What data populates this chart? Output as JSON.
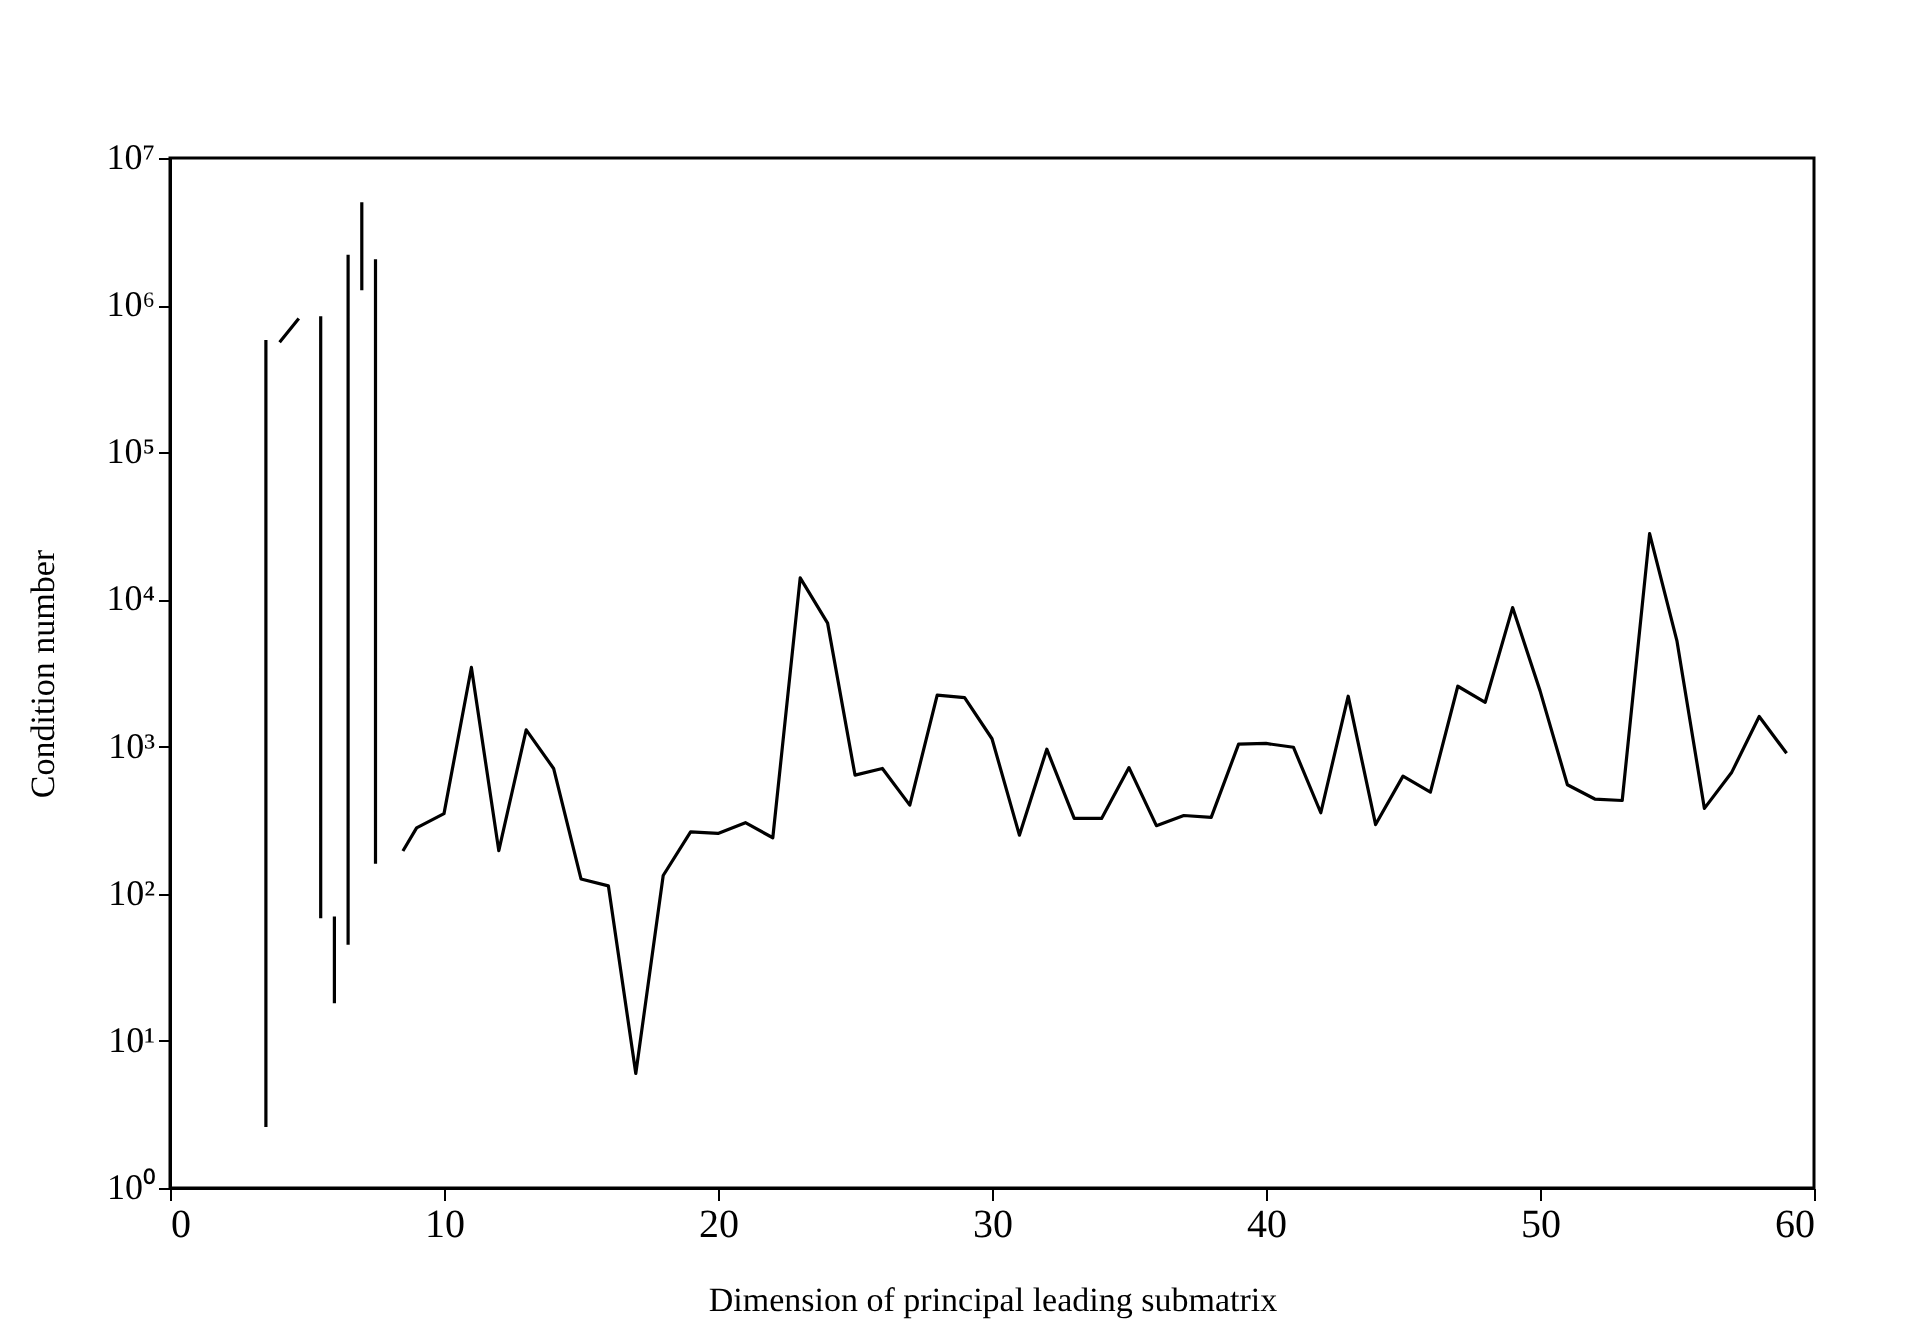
{
  "chart_data": {
    "type": "line",
    "xlabel": "Dimension of principal leading submatrix",
    "ylabel": "Condition number",
    "log": "y",
    "xlim": [
      0,
      60
    ],
    "xticks": [
      0,
      10,
      20,
      30,
      40,
      50,
      60
    ],
    "ylim": [
      1,
      10000000
    ],
    "yticks": [
      {
        "value": 1,
        "label": "10⁰"
      },
      {
        "value": 10,
        "label": "10¹"
      },
      {
        "value": 100,
        "label": "10²"
      },
      {
        "value": 1000,
        "label": "10³"
      },
      {
        "value": 10000,
        "label": "10⁴"
      },
      {
        "value": 100000,
        "label": "10⁵"
      },
      {
        "value": 1000000,
        "label": "10⁶"
      },
      {
        "value": 10000000,
        "label": "10⁷"
      }
    ],
    "series": [
      {
        "color": "#000000",
        "x": [
          3.5,
          3.5,
          3.7,
          4,
          4.7,
          5,
          5.5,
          5.5,
          5.7,
          6,
          6,
          6.2,
          6.5,
          6.5,
          6.7,
          7,
          7,
          7.2,
          7.5,
          7.5,
          7.7,
          8.5,
          9,
          10,
          11,
          12,
          13,
          14,
          15,
          16,
          17,
          18,
          19,
          20,
          21,
          22,
          23,
          24,
          25,
          26,
          27,
          28,
          29,
          30,
          31,
          32,
          33,
          34,
          35,
          36,
          37,
          38,
          39,
          40,
          41,
          42,
          43,
          44,
          45,
          46,
          47,
          48,
          49,
          50,
          51,
          52,
          53,
          54,
          55,
          56,
          57,
          58,
          59
        ],
        "values": [
          2.6,
          580000,
          null,
          560000,
          810000,
          null,
          840000,
          68,
          null,
          70,
          18,
          null,
          2200000,
          45,
          null,
          5000000,
          1260000,
          null,
          2050000,
          160,
          null,
          195,
          280,
          350,
          3450,
          196,
          1300,
          710,
          126,
          113,
          6,
          133,
          263,
          257,
          304,
          240,
          14000,
          6900,
          640,
          710,
          400,
          2240,
          2150,
          1130,
          250,
          960,
          325,
          325,
          720,
          290,
          340,
          330,
          1040,
          1050,
          990,
          355,
          2200,
          295,
          630,
          490,
          2570,
          2000,
          8800,
          2400,
          550,
          440,
          430,
          28000,
          5200,
          380,
          670,
          1600,
          900
        ]
      }
    ]
  }
}
